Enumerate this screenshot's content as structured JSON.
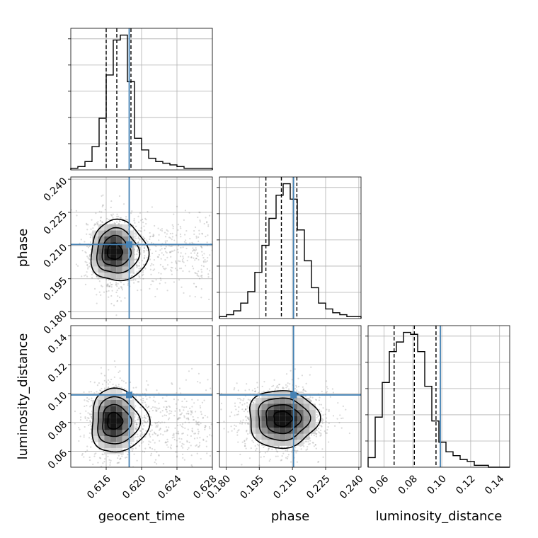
{
  "chart_data": {
    "type": "corner",
    "parameters": [
      "geocent_time",
      "phase",
      "luminosity_distance"
    ],
    "truth_color": "#4682b4",
    "truths": {
      "geocent_time": 0.6186,
      "phase": 0.2105,
      "luminosity_distance": 0.099
    },
    "quantiles": {
      "geocent_time": [
        0.616,
        0.6172,
        0.6188
      ],
      "phase": [
        0.198,
        0.205,
        0.212
      ],
      "luminosity_distance": [
        0.067,
        0.081,
        0.096
      ]
    },
    "axes": {
      "geocent_time": {
        "range": [
          0.612,
          0.628
        ],
        "ticks": [
          "0.616",
          "0.620",
          "0.624",
          "0.628"
        ],
        "tick_values": [
          0.616,
          0.62,
          0.624,
          0.628
        ]
      },
      "phase": {
        "range": [
          0.177,
          0.241
        ],
        "ticks": [
          "0.180",
          "0.195",
          "0.210",
          "0.225",
          "0.240"
        ],
        "tick_values": [
          0.18,
          0.195,
          0.21,
          0.225,
          0.24
        ]
      },
      "luminosity_distance": {
        "range": [
          0.049,
          0.147
        ],
        "ticks": [
          "0.06",
          "0.08",
          "0.10",
          "0.12",
          "0.14"
        ],
        "tick_values": [
          0.06,
          0.08,
          0.1,
          0.12,
          0.14
        ]
      }
    },
    "histograms": {
      "geocent_time": {
        "bin_start": 0.612,
        "bin_width": 0.0008,
        "counts": [
          1,
          2,
          5,
          14,
          31,
          57,
          78,
          81,
          53,
          19,
          12,
          7,
          5,
          4,
          3,
          2,
          1,
          1,
          1,
          1
        ]
      },
      "phase": {
        "bin_start": 0.177,
        "bin_width": 0.0032,
        "counts": [
          1,
          2,
          4,
          8,
          14,
          24,
          38,
          52,
          64,
          70,
          62,
          46,
          30,
          16,
          8,
          5,
          3,
          2,
          1,
          1
        ]
      },
      "luminosity_distance": {
        "bin_start": 0.049,
        "bin_width": 0.0049,
        "counts": [
          5,
          26,
          44,
          60,
          65,
          70,
          69,
          60,
          42,
          24,
          13,
          8,
          6,
          4,
          3,
          1,
          1,
          0,
          0,
          0
        ]
      }
    },
    "pair_densities": [
      {
        "x": "geocent_time",
        "y": "phase",
        "mean": [
          0.6168,
          0.2073
        ],
        "sd": [
          0.0012,
          0.0065
        ],
        "tail_x": 0.0045
      },
      {
        "x": "geocent_time",
        "y": "luminosity_distance",
        "mean": [
          0.6168,
          0.081
        ],
        "sd": [
          0.0012,
          0.0105
        ],
        "tail_x": 0.0045
      },
      {
        "x": "phase",
        "y": "luminosity_distance",
        "mean": [
          0.2055,
          0.0825
        ],
        "sd": [
          0.0075,
          0.0095
        ],
        "tail_x": 0.0
      }
    ],
    "grid": true
  }
}
